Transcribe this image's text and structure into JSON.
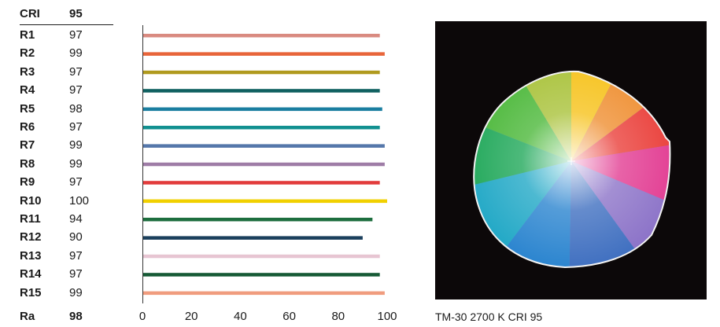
{
  "header": {
    "label": "CRI",
    "value": "95"
  },
  "chart_data": {
    "type": "bar",
    "orientation": "horizontal",
    "categories": [
      "R1",
      "R2",
      "R3",
      "R4",
      "R5",
      "R6",
      "R7",
      "R8",
      "R9",
      "R10",
      "R11",
      "R12",
      "R13",
      "R14",
      "R15"
    ],
    "values": [
      97,
      99,
      97,
      97,
      98,
      97,
      99,
      99,
      97,
      100,
      94,
      90,
      97,
      97,
      99
    ],
    "colors": [
      "#d98a80",
      "#e8653a",
      "#b09a1e",
      "#0f6060",
      "#1a7ea0",
      "#129090",
      "#5577aa",
      "#9e7ca6",
      "#e23b3b",
      "#f1d000",
      "#1d6e3e",
      "#1b3f5c",
      "#e7c5d2",
      "#165a35",
      "#f09c7e"
    ],
    "xlim": [
      0,
      100
    ],
    "xticks": [
      "0",
      "20",
      "40",
      "60",
      "80",
      "100"
    ],
    "summary": {
      "label": "Ra",
      "value": "98"
    },
    "grid": false
  },
  "caption": "TM-30 2700 K CRI 95"
}
